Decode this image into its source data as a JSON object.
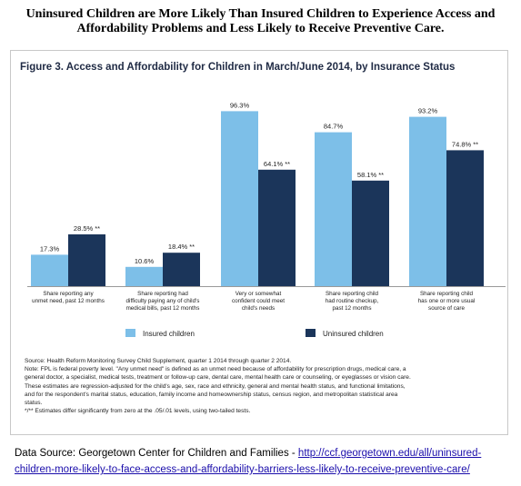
{
  "headline": {
    "line1": "Uninsured Children are More Likely Than Insured Children to Experience Access and",
    "line2": "Affordability Problems and Less Likely to Receive Preventive Care."
  },
  "chart_data": {
    "type": "bar",
    "title": "Figure 3. Access and Affordability for Children in March/June 2014, by Insurance Status",
    "xlabel": "",
    "ylabel": "",
    "ylim": [
      0,
      100
    ],
    "grid": false,
    "legend_position": "bottom",
    "categories": [
      [
        "Share reporting any",
        "unmet need, past 12 months"
      ],
      [
        "Share reporting had",
        "difficulty paying any of child's",
        "medical bills, past 12 months"
      ],
      [
        "Very or somewhat",
        "confident could meet",
        "child's needs"
      ],
      [
        "Share reporting child",
        "had routine checkup,",
        "past 12 months"
      ],
      [
        "Share reporting child",
        "has one or more usual",
        "source of care"
      ]
    ],
    "series": [
      {
        "name": "Insured children",
        "color": "#7dbfe8",
        "values": [
          17.3,
          10.6,
          96.3,
          84.7,
          93.2
        ],
        "labels": [
          "17.3%",
          "10.6%",
          "96.3%",
          "84.7%",
          "93.2%"
        ]
      },
      {
        "name": "Uninsured children",
        "color": "#1b355a",
        "values": [
          28.5,
          18.4,
          64.1,
          58.1,
          74.8
        ],
        "labels": [
          "28.5% **",
          "18.4% **",
          "64.1% **",
          "58.1% **",
          "74.8% **"
        ]
      }
    ]
  },
  "notes": [
    "Source: Health Reform Monitoring Survey Child Supplement, quarter 1 2014 through quarter 2 2014.",
    "Note: FPL is federal poverty level.  \"Any unmet need\" is defined as an unmet need because of affordability for prescription drugs, medical care, a",
    "general doctor, a specialist, medical tests, treatment or follow-up care, dental care, mental health care or counseling, or eyeglasses or vision care.",
    "These estimates are regression-adjusted for the child's age, sex, race and ethnicity, general and mental health status, and functional limitations,",
    "and for the respondent's marital status, education, family income and homeownership status, census region, and metropolitan statistical area",
    "status.",
    "*/** Estimates differ significantly from zero at the .05/.01 levels, using two-tailed tests."
  ],
  "source": {
    "prefix": "Data Source: Georgetown Center for Children and Families - ",
    "link_part1": "http://ccf.georgetown.edu/all/uninsured-",
    "link_part2": "children-more-likely-to-face-access-and-affordability-barriers-less-likely-to-receive-preventive-care/"
  }
}
